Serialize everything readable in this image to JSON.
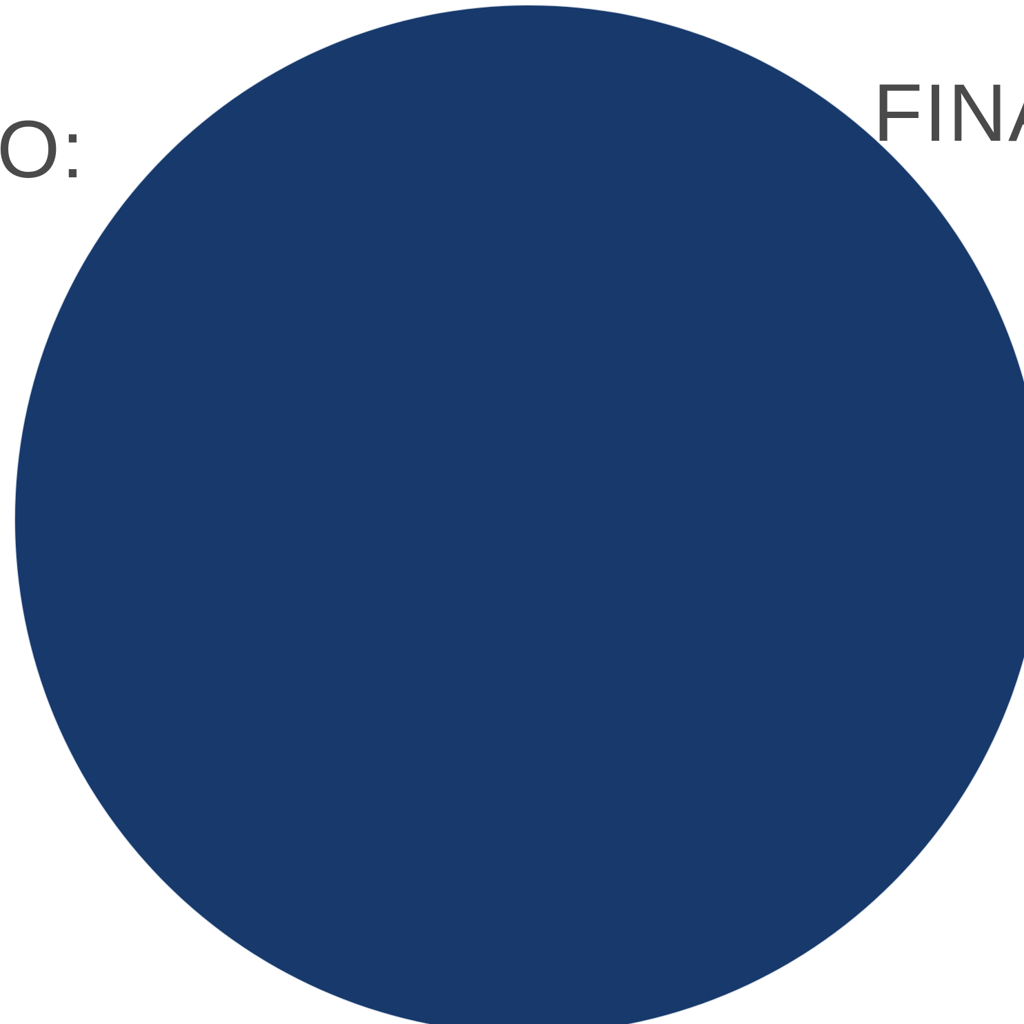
{
  "labels": {
    "left": "DO:",
    "right": "FINA"
  },
  "colors": {
    "circle_fill": "#17396b",
    "text": "#4a4a4a",
    "background": "#ffffff"
  }
}
